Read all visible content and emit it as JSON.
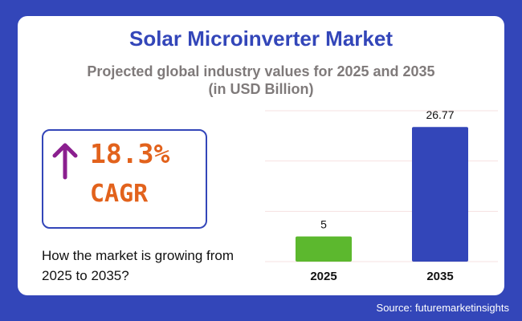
{
  "title": "Solar Microinverter Market",
  "subtitle_line1": "Projected global industry values for 2025 and 2035",
  "subtitle_line2": "(in USD Billion)",
  "cagr": {
    "value": "18.3%",
    "label": "CAGR",
    "icon": "arrow-up-icon",
    "arrow_color": "#8b1f8f",
    "text_color": "#e2621c"
  },
  "question": "How the market is growing from 2025 to 2035?",
  "source": "Source: futuremarketinsights",
  "chart_data": {
    "type": "bar",
    "categories": [
      "2025",
      "2035"
    ],
    "values": [
      5,
      26.77
    ],
    "data_labels": [
      "5",
      "26.77"
    ],
    "colors": [
      "#5cb82e",
      "#3346b9"
    ],
    "ylim": [
      0,
      30
    ],
    "gridlines": [
      0,
      10,
      20,
      30
    ],
    "grid": true,
    "xlabel": "",
    "ylabel": ""
  }
}
